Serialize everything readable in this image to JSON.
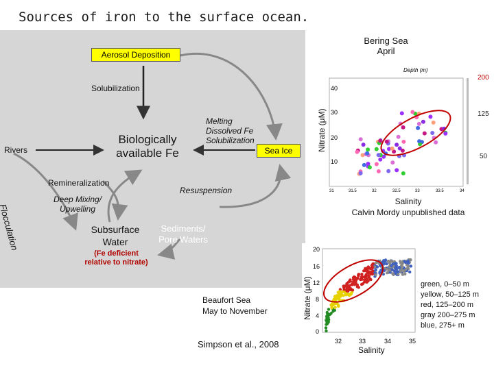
{
  "title": "Sources of iron to the surface ocean.",
  "diagram": {
    "aerosol": "Aerosol Deposition",
    "solubilization": "Solubilization",
    "rivers": "Rivers",
    "bio_fe_line1": "Biologically",
    "bio_fe_line2": "available Fe",
    "melting_line1": "Melting",
    "melting_line2": "Dissolved Fe",
    "melting_line3": "Solubilization",
    "sea_ice": "Sea Ice",
    "remineralization": "Remineralization",
    "resuspension": "Resuspension",
    "deep_mixing_line1": "Deep Mixing/",
    "deep_mixing_line2": "Upwelling",
    "flocculation": "Flocculation",
    "subsurface_line1": "Subsurface",
    "subsurface_line2": "Water",
    "sediments_line1": "Sediments/",
    "sediments_line2": "Pore Waters",
    "fe_deficient_line1": "(Fe deficient",
    "fe_deficient_line2": "relative to nitrate)",
    "box_color": "#ffff00",
    "panel_color": "#d6d6d6"
  },
  "bering": {
    "title_line1": "Bering Sea",
    "title_line2": "April",
    "depth_label": "Depth (m)",
    "colorbar_ticks": [
      "200",
      "125",
      "50"
    ],
    "ylabel": "Nitrate (μM)",
    "yticks": [
      "40",
      "30",
      "20",
      "10"
    ],
    "xticks": [
      "31",
      "31.5",
      "32",
      "32.5",
      "33",
      "33.5",
      "34"
    ],
    "xlabel": "Salinity",
    "credit": "Calvin Mordy unpublished data"
  },
  "beaufort": {
    "title_line1": "Beaufort Sea",
    "title_line2": "May to November",
    "ylabel": "Nitrate (μM)",
    "yticks": [
      "20",
      "16",
      "12",
      "8",
      "4",
      "0"
    ],
    "xticks": [
      "32",
      "33",
      "34",
      "35"
    ],
    "xlabel": "Salinity",
    "legend": [
      "green, 0–50 m",
      "yellow, 50–125 m",
      "red, 125–200 m",
      "gray 200–275 m",
      "blue, 275+ m"
    ],
    "citation": "Simpson et al., 2008"
  }
}
